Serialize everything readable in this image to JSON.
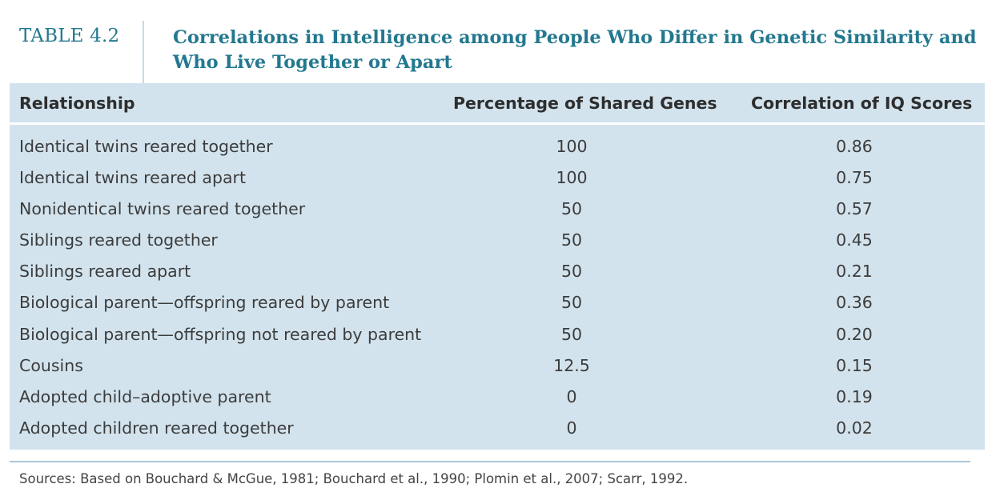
{
  "table": {
    "number": "TABLE 4.2",
    "title": "Correlations in Intelligence among People Who Differ in Genetic Similarity and Who Live Together or Apart",
    "columns": [
      "Relationship",
      "Percentage of Shared Genes",
      "Correlation of IQ Scores"
    ],
    "rows": [
      {
        "relationship": "Identical twins reared together",
        "shared_genes": "100",
        "iq_correlation": "0.86"
      },
      {
        "relationship": "Identical twins reared apart",
        "shared_genes": "100",
        "iq_correlation": "0.75"
      },
      {
        "relationship": "Nonidentical twins reared together",
        "shared_genes": "50",
        "iq_correlation": "0.57"
      },
      {
        "relationship": "Siblings reared together",
        "shared_genes": "50",
        "iq_correlation": "0.45"
      },
      {
        "relationship": "Siblings reared apart",
        "shared_genes": "50",
        "iq_correlation": "0.21"
      },
      {
        "relationship": "Biological parent—offspring reared by parent",
        "shared_genes": "50",
        "iq_correlation": "0.36"
      },
      {
        "relationship": "Biological parent—offspring not reared by parent",
        "shared_genes": "50",
        "iq_correlation": "0.20"
      },
      {
        "relationship": "Cousins",
        "shared_genes": "12.5",
        "iq_correlation": "0.15"
      },
      {
        "relationship": "Adopted child–adoptive parent",
        "shared_genes": "0",
        "iq_correlation": "0.19"
      },
      {
        "relationship": "Adopted children reared together",
        "shared_genes": "0",
        "iq_correlation": "0.02"
      }
    ],
    "sources": "Sources: Based on Bouchard & McGue, 1981; Bouchard et al., 1990; Plomin et al., 2007; Scarr, 1992."
  },
  "colors": {
    "title": "#23788f",
    "panel": "#d2e3ed",
    "rule": "#a9c9d6"
  }
}
